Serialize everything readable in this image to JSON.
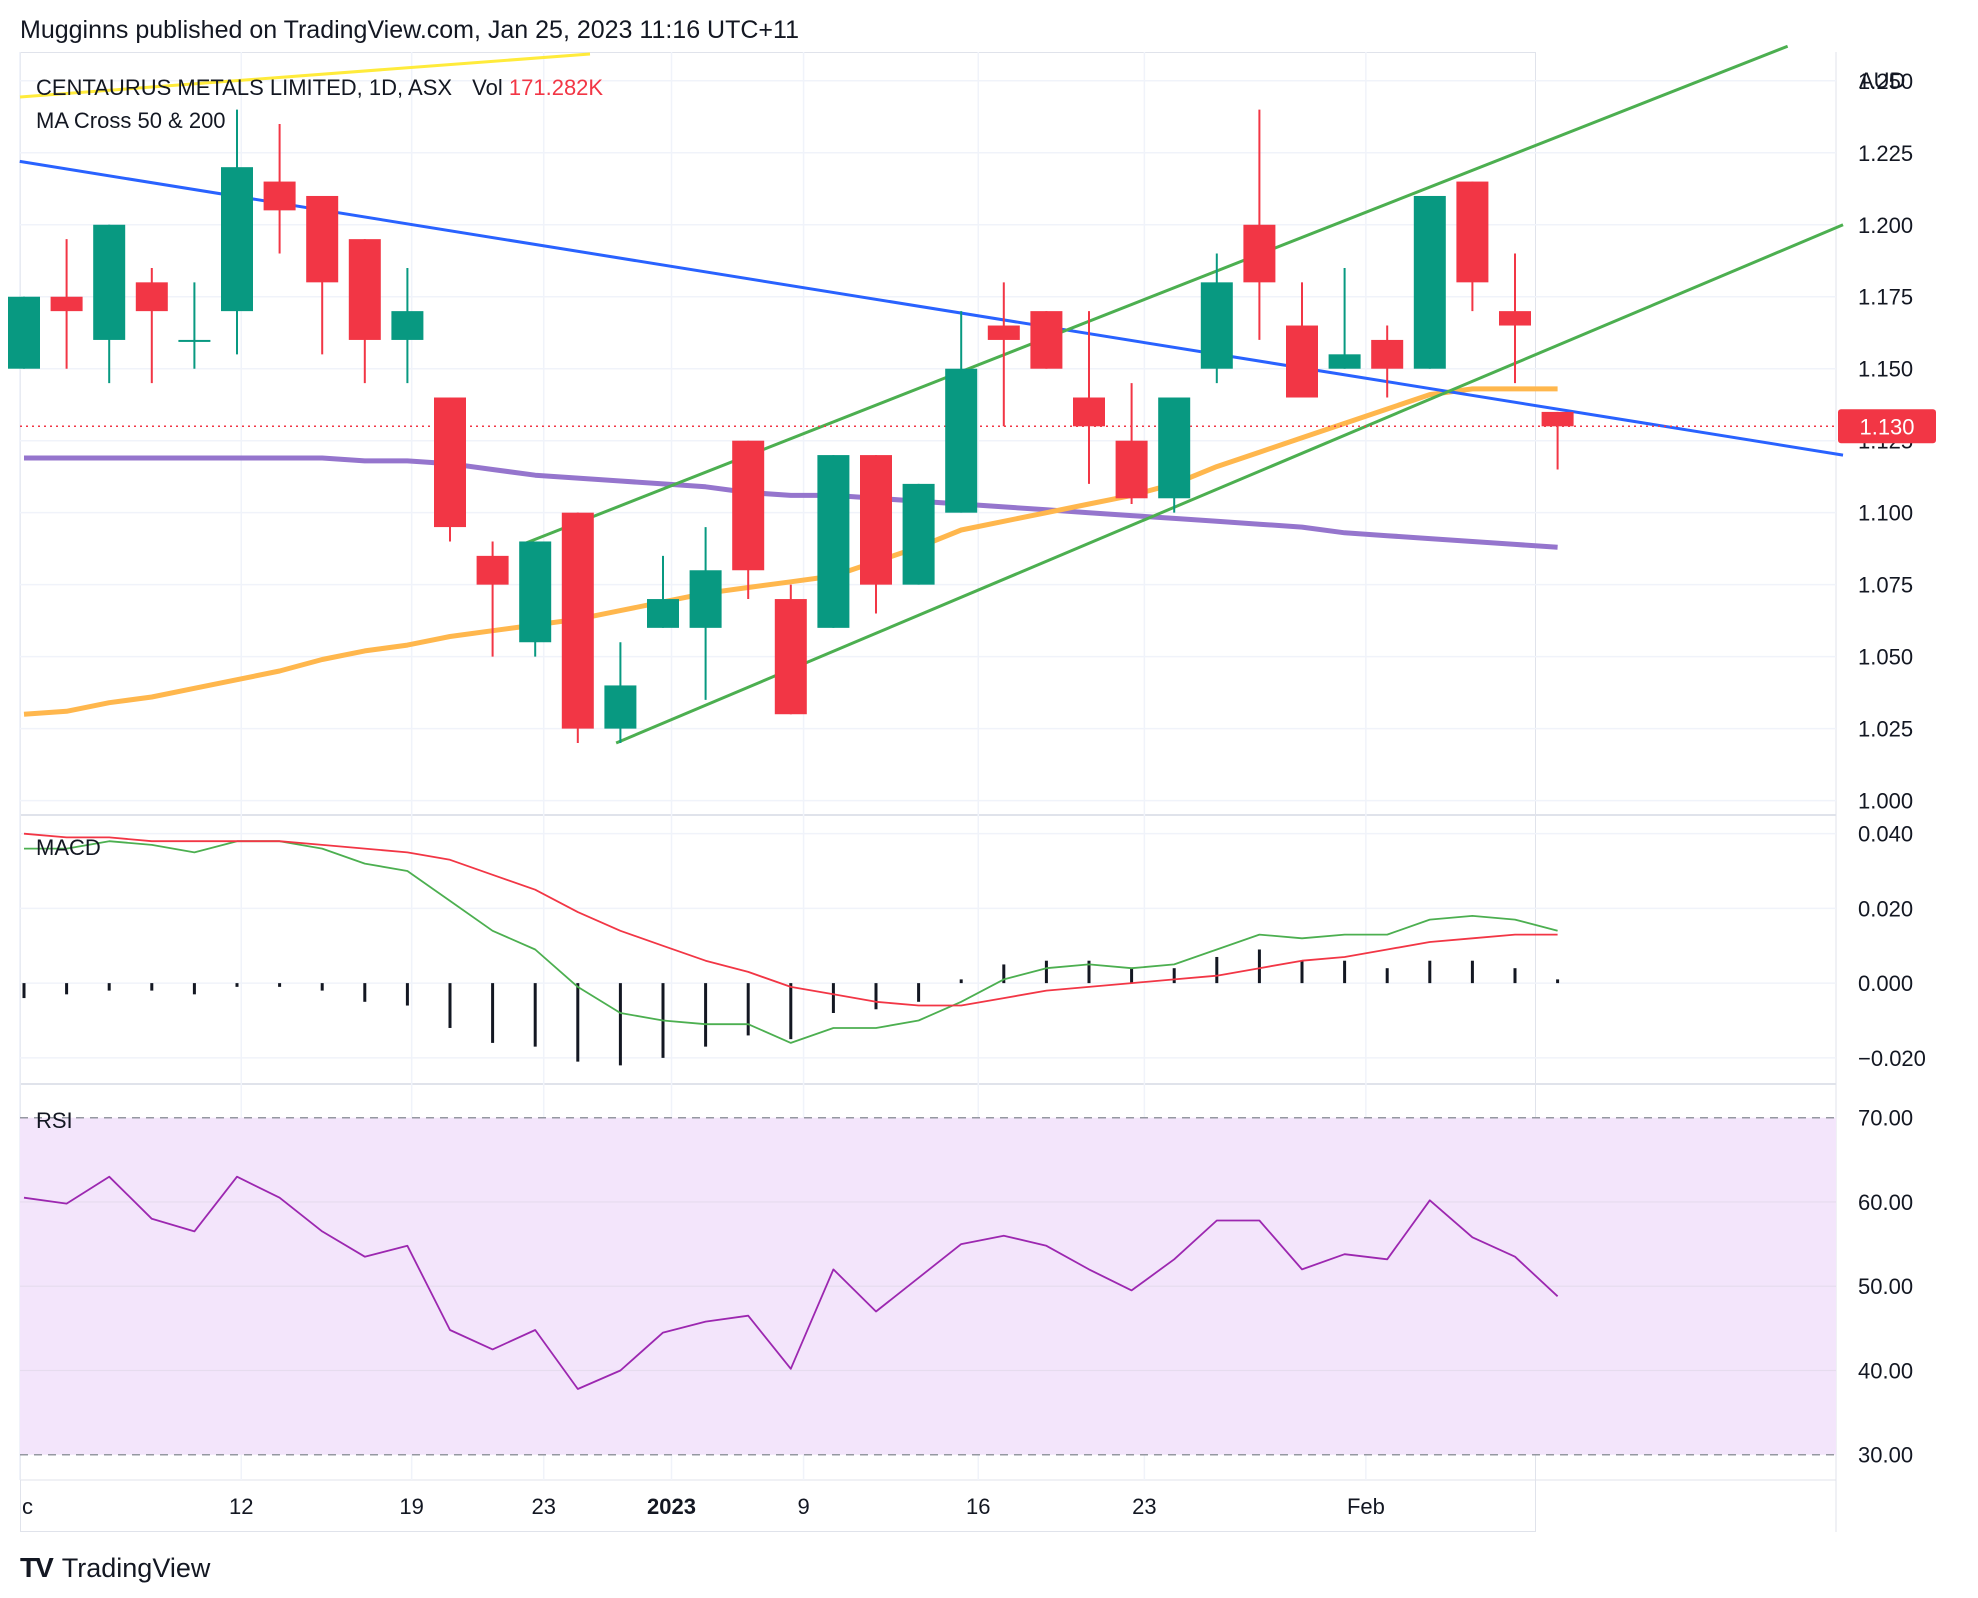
{
  "header": {
    "published_text": "Mugginns published on TradingView.com, Jan 25, 2023 11:16 UTC+11"
  },
  "legend": {
    "symbol_text": "CENTAURUS METALS LIMITED, 1D, ASX",
    "vol_label": "Vol",
    "vol_value": "171.282K",
    "indicator_text": "MA Cross 50 & 200",
    "macd_label": "MACD",
    "rsi_label": "RSI"
  },
  "price_axis": {
    "currency": "AUD",
    "ticks": [
      "1.250",
      "1.225",
      "1.200",
      "1.175",
      "1.150",
      "1.125",
      "1.100",
      "1.075",
      "1.050",
      "1.025",
      "1.000"
    ],
    "last_price_label": "1.130"
  },
  "macd_axis": {
    "ticks": [
      "0.040",
      "0.020",
      "0.000",
      "−0.020"
    ]
  },
  "rsi_axis": {
    "ticks": [
      "70.00",
      "60.00",
      "50.00",
      "40.00",
      "30.00"
    ]
  },
  "time_axis": {
    "ticks": [
      {
        "label": "c",
        "bold": false
      },
      {
        "label": "12",
        "bold": false
      },
      {
        "label": "19",
        "bold": false
      },
      {
        "label": "23",
        "bold": false
      },
      {
        "label": "2023",
        "bold": true
      },
      {
        "label": "9",
        "bold": false
      },
      {
        "label": "16",
        "bold": false
      },
      {
        "label": "23",
        "bold": false
      },
      {
        "label": "Feb",
        "bold": false
      }
    ]
  },
  "footer": {
    "logo_mark": "TV",
    "brand": "TradingView"
  },
  "colors": {
    "up": "#089981",
    "down": "#f23645",
    "trendline": "#2962ff",
    "channel": "#4caf50",
    "ma50": "#ffb74d",
    "ma200": "#9575cd",
    "macd_line": "#4caf50",
    "signal_line": "#f23645",
    "histogram": "#131722",
    "rsi_line": "#9c27b0",
    "rsi_band": "#f3e5fb",
    "grid": "#f0f3fa",
    "last_price_tag": "#f23645"
  },
  "chart_data": [
    {
      "type": "candlestick",
      "title": "CENTAURUS METALS LIMITED, 1D, ASX",
      "ylabel": "AUD",
      "ylim": [
        0.995,
        1.26
      ],
      "last_price": 1.13,
      "candles": [
        {
          "o": 1.15,
          "h": 1.175,
          "l": 1.15,
          "c": 1.175
        },
        {
          "o": 1.175,
          "h": 1.195,
          "l": 1.15,
          "c": 1.17
        },
        {
          "o": 1.16,
          "h": 1.2,
          "l": 1.145,
          "c": 1.2
        },
        {
          "o": 1.18,
          "h": 1.185,
          "l": 1.145,
          "c": 1.17
        },
        {
          "o": 1.16,
          "h": 1.18,
          "l": 1.15,
          "c": 1.16
        },
        {
          "o": 1.17,
          "h": 1.24,
          "l": 1.155,
          "c": 1.22
        },
        {
          "o": 1.215,
          "h": 1.235,
          "l": 1.19,
          "c": 1.205
        },
        {
          "o": 1.21,
          "h": 1.21,
          "l": 1.155,
          "c": 1.18
        },
        {
          "o": 1.195,
          "h": 1.195,
          "l": 1.145,
          "c": 1.16
        },
        {
          "o": 1.16,
          "h": 1.185,
          "l": 1.145,
          "c": 1.17
        },
        {
          "o": 1.14,
          "h": 1.14,
          "l": 1.09,
          "c": 1.095
        },
        {
          "o": 1.085,
          "h": 1.09,
          "l": 1.05,
          "c": 1.075
        },
        {
          "o": 1.055,
          "h": 1.09,
          "l": 1.05,
          "c": 1.09
        },
        {
          "o": 1.1,
          "h": 1.1,
          "l": 1.02,
          "c": 1.025
        },
        {
          "o": 1.025,
          "h": 1.055,
          "l": 1.02,
          "c": 1.04
        },
        {
          "o": 1.06,
          "h": 1.085,
          "l": 1.06,
          "c": 1.07
        },
        {
          "o": 1.06,
          "h": 1.095,
          "l": 1.035,
          "c": 1.08
        },
        {
          "o": 1.125,
          "h": 1.125,
          "l": 1.07,
          "c": 1.08
        },
        {
          "o": 1.07,
          "h": 1.075,
          "l": 1.03,
          "c": 1.03
        },
        {
          "o": 1.06,
          "h": 1.12,
          "l": 1.06,
          "c": 1.12
        },
        {
          "o": 1.12,
          "h": 1.12,
          "l": 1.065,
          "c": 1.075
        },
        {
          "o": 1.075,
          "h": 1.11,
          "l": 1.075,
          "c": 1.11
        },
        {
          "o": 1.1,
          "h": 1.17,
          "l": 1.1,
          "c": 1.15
        },
        {
          "o": 1.165,
          "h": 1.18,
          "l": 1.13,
          "c": 1.16
        },
        {
          "o": 1.17,
          "h": 1.17,
          "l": 1.15,
          "c": 1.15
        },
        {
          "o": 1.14,
          "h": 1.17,
          "l": 1.11,
          "c": 1.13
        },
        {
          "o": 1.125,
          "h": 1.145,
          "l": 1.103,
          "c": 1.105
        },
        {
          "o": 1.105,
          "h": 1.14,
          "l": 1.1,
          "c": 1.14
        },
        {
          "o": 1.15,
          "h": 1.19,
          "l": 1.145,
          "c": 1.18
        },
        {
          "o": 1.2,
          "h": 1.24,
          "l": 1.16,
          "c": 1.18
        },
        {
          "o": 1.165,
          "h": 1.18,
          "l": 1.14,
          "c": 1.14
        },
        {
          "o": 1.15,
          "h": 1.185,
          "l": 1.15,
          "c": 1.155
        },
        {
          "o": 1.16,
          "h": 1.165,
          "l": 1.14,
          "c": 1.15
        },
        {
          "o": 1.15,
          "h": 1.21,
          "l": 1.15,
          "c": 1.21
        },
        {
          "o": 1.215,
          "h": 1.215,
          "l": 1.17,
          "c": 1.18
        },
        {
          "o": 1.17,
          "h": 1.19,
          "l": 1.145,
          "c": 1.165
        },
        {
          "o": 1.135,
          "h": 1.135,
          "l": 1.115,
          "c": 1.13
        }
      ],
      "ma50": [
        1.03,
        1.031,
        1.034,
        1.036,
        1.039,
        1.042,
        1.045,
        1.049,
        1.052,
        1.054,
        1.057,
        1.059,
        1.061,
        1.063,
        1.066,
        1.069,
        1.072,
        1.074,
        1.076,
        1.078,
        1.083,
        1.088,
        1.094,
        1.097,
        1.1,
        1.103,
        1.106,
        1.11,
        1.116,
        1.121,
        1.126,
        1.131,
        1.136,
        1.141,
        1.143,
        1.143,
        1.143
      ],
      "ma200": [
        1.119,
        1.119,
        1.119,
        1.119,
        1.119,
        1.119,
        1.119,
        1.119,
        1.118,
        1.118,
        1.117,
        1.115,
        1.113,
        1.112,
        1.111,
        1.11,
        1.109,
        1.107,
        1.106,
        1.106,
        1.105,
        1.104,
        1.103,
        1.102,
        1.101,
        1.1,
        1.099,
        1.098,
        1.097,
        1.096,
        1.095,
        1.093,
        1.092,
        1.091,
        1.09,
        1.089,
        1.088
      ]
    },
    {
      "type": "line",
      "title": "MACD",
      "ylim": [
        -0.027,
        0.045
      ],
      "series": [
        {
          "name": "MACD",
          "values": [
            0.036,
            0.036,
            0.038,
            0.037,
            0.035,
            0.038,
            0.038,
            0.036,
            0.032,
            0.03,
            0.022,
            0.014,
            0.009,
            -0.001,
            -0.008,
            -0.01,
            -0.011,
            -0.011,
            -0.016,
            -0.012,
            -0.012,
            -0.01,
            -0.005,
            0.001,
            0.004,
            0.005,
            0.004,
            0.005,
            0.009,
            0.013,
            0.012,
            0.013,
            0.013,
            0.017,
            0.018,
            0.017,
            0.014
          ]
        },
        {
          "name": "Signal",
          "values": [
            0.04,
            0.039,
            0.039,
            0.038,
            0.038,
            0.038,
            0.038,
            0.037,
            0.036,
            0.035,
            0.033,
            0.029,
            0.025,
            0.019,
            0.014,
            0.01,
            0.006,
            0.003,
            -0.001,
            -0.003,
            -0.005,
            -0.006,
            -0.006,
            -0.004,
            -0.002,
            -0.001,
            0.0,
            0.001,
            0.002,
            0.004,
            0.006,
            0.007,
            0.009,
            0.011,
            0.012,
            0.013,
            0.013
          ]
        }
      ],
      "histogram": [
        -0.004,
        -0.003,
        -0.002,
        -0.002,
        -0.003,
        -0.001,
        -0.001,
        -0.002,
        -0.005,
        -0.006,
        -0.012,
        -0.016,
        -0.017,
        -0.021,
        -0.022,
        -0.02,
        -0.017,
        -0.014,
        -0.015,
        -0.008,
        -0.007,
        -0.005,
        0.001,
        0.005,
        0.006,
        0.006,
        0.004,
        0.004,
        0.007,
        0.009,
        0.006,
        0.006,
        0.004,
        0.006,
        0.006,
        0.004,
        0.001
      ]
    },
    {
      "type": "line",
      "title": "RSI",
      "ylim": [
        27,
        74
      ],
      "band": [
        30,
        70
      ],
      "series": [
        {
          "name": "RSI",
          "values": [
            60.5,
            59.8,
            63.0,
            58.0,
            56.5,
            63.0,
            60.5,
            56.5,
            53.5,
            54.8,
            44.8,
            42.5,
            44.8,
            37.8,
            40.0,
            44.5,
            45.8,
            46.5,
            40.2,
            52.0,
            47.0,
            51.0,
            55.0,
            56.0,
            54.8,
            52.0,
            49.5,
            53.2,
            57.8,
            57.8,
            52.0,
            53.8,
            53.2,
            60.2,
            55.8,
            53.5,
            48.8
          ]
        }
      ]
    }
  ]
}
